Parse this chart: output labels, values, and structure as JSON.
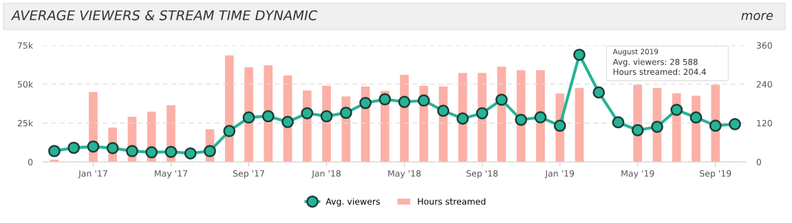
{
  "chart_data": {
    "type": "bar",
    "title": "AVERAGE VIEWERS & STREAM TIME DYNAMIC",
    "categories": [
      null,
      null,
      "Jan '17",
      null,
      null,
      null,
      "May '17",
      null,
      null,
      null,
      "Sep '17",
      null,
      null,
      null,
      "Jan '18",
      null,
      null,
      null,
      "May '18",
      null,
      null,
      null,
      "Sep '18",
      null,
      null,
      null,
      "Jan '19",
      null,
      null,
      null,
      "May '19",
      null,
      null,
      null,
      "Sep '19",
      null
    ],
    "series": [
      {
        "name": "Avg. viewers",
        "type": "line",
        "color": "#26b396",
        "axis": "y",
        "values": [
          7000,
          9100,
          9900,
          8900,
          7000,
          6200,
          6500,
          5500,
          7000,
          19900,
          28600,
          29400,
          25700,
          31300,
          29400,
          31600,
          37900,
          40300,
          38600,
          39500,
          32900,
          27900,
          31300,
          40000,
          27100,
          28700,
          23300,
          68900,
          44700,
          25500,
          20400,
          22600,
          33500,
          28588,
          23300,
          24300
        ]
      },
      {
        "name": "Hours streamed",
        "color": "#fcb0a6",
        "axis": "y2",
        "values": [
          7,
          null,
          216,
          106,
          139,
          155,
          175,
          null,
          101,
          329,
          292,
          298,
          267,
          221,
          235,
          202,
          233,
          219,
          269,
          235,
          233,
          275,
          275,
          294,
          283,
          283,
          211,
          228,
          null,
          null,
          238,
          228,
          212,
          204.4,
          238,
          null
        ]
      }
    ],
    "ylim": [
      0,
      75000
    ],
    "yticks": [
      0,
      {
        "value": 25000,
        "label": "25k"
      },
      {
        "value": 50000,
        "label": "50k"
      },
      {
        "value": 75000,
        "label": "75k"
      }
    ],
    "y2lim": [
      0,
      360
    ],
    "y2ticks": [
      0,
      120,
      240,
      360
    ],
    "grid": "y",
    "legend": "bottom",
    "marker": "circle",
    "line_style": "solid",
    "annotations": [
      "more",
      "August 2019",
      "Avg. viewers: 28 588",
      "Hours streamed: 204.4"
    ]
  }
}
